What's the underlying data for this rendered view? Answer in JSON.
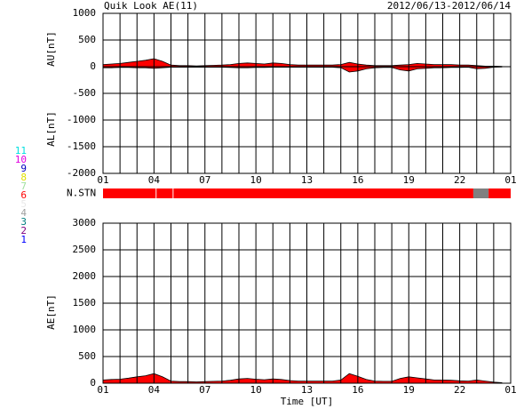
{
  "chart_data": [
    {
      "type": "area",
      "title": "Quik Look AE(11)",
      "subtitle": "2012/06/13-2012/06/14",
      "ylabels": [
        "AU[nT]",
        "AL[nT]"
      ],
      "xlim": [
        0,
        24
      ],
      "xticks": [
        {
          "value": 0,
          "label": "01"
        },
        {
          "value": 3,
          "label": "04"
        },
        {
          "value": 6,
          "label": "07"
        },
        {
          "value": 9,
          "label": "10"
        },
        {
          "value": 12,
          "label": "13"
        },
        {
          "value": 15,
          "label": "16"
        },
        {
          "value": 18,
          "label": "19"
        },
        {
          "value": 21,
          "label": "22"
        },
        {
          "value": 24,
          "label": "01"
        }
      ],
      "x_minor_ticks": [
        1,
        2,
        4,
        5,
        7,
        8,
        10,
        11,
        13,
        14,
        16,
        17,
        19,
        20,
        22,
        23
      ],
      "ylim": [
        -2000,
        1000
      ],
      "yticks": [
        -2000,
        -1500,
        -1000,
        -500,
        0,
        500,
        1000
      ],
      "grid": true,
      "x": [
        0,
        0.5,
        1,
        1.5,
        2,
        2.5,
        3,
        3.5,
        4,
        4.5,
        5,
        5.5,
        6,
        6.5,
        7,
        7.5,
        8,
        8.5,
        9,
        9.5,
        10,
        10.5,
        11,
        11.5,
        12,
        12.5,
        13,
        13.5,
        14,
        14.5,
        15,
        15.5,
        16,
        16.5,
        17,
        17.5,
        18,
        18.5,
        19,
        19.5,
        20,
        20.5,
        21,
        21.5,
        22,
        22.5,
        23,
        23.5
      ],
      "series": [
        {
          "name": "AU",
          "color": "#ff0000",
          "values": [
            40,
            50,
            60,
            80,
            100,
            120,
            150,
            100,
            30,
            20,
            20,
            15,
            20,
            25,
            30,
            40,
            60,
            70,
            60,
            50,
            70,
            60,
            40,
            30,
            30,
            30,
            30,
            30,
            40,
            80,
            50,
            30,
            20,
            20,
            20,
            30,
            40,
            60,
            50,
            40,
            40,
            40,
            30,
            30,
            20,
            10,
            10,
            5
          ]
        },
        {
          "name": "AL",
          "color": "#ff0000",
          "values": [
            -20,
            -20,
            -15,
            -15,
            -20,
            -20,
            -30,
            -20,
            -10,
            -10,
            -10,
            -10,
            -10,
            -10,
            -10,
            -15,
            -20,
            -20,
            -15,
            -15,
            -10,
            -10,
            -10,
            -10,
            -10,
            -10,
            -10,
            -10,
            -20,
            -100,
            -80,
            -40,
            -20,
            -15,
            -15,
            -60,
            -80,
            -40,
            -30,
            -20,
            -20,
            -15,
            -15,
            -10,
            -40,
            -30,
            -10,
            -5
          ]
        }
      ]
    },
    {
      "type": "status",
      "label": "N.STN",
      "xlim": [
        0,
        24
      ],
      "segments": [
        {
          "x": [
            0,
            3.1
          ],
          "color": "#ff0000"
        },
        {
          "x": [
            3.15,
            4.1
          ],
          "color": "#ff0000"
        },
        {
          "x": [
            4.15,
            21.8
          ],
          "color": "#ff0000"
        },
        {
          "x": [
            21.8,
            22.7
          ],
          "color": "#808080"
        },
        {
          "x": [
            22.7,
            24
          ],
          "color": "#ff0000"
        }
      ],
      "stations": [
        {
          "label": "11",
          "color": "#00e0e0"
        },
        {
          "label": "10",
          "color": "#e000e0"
        },
        {
          "label": "9",
          "color": "#0000c0"
        },
        {
          "label": "8",
          "color": "#e0e000"
        },
        {
          "label": "7",
          "color": "#a0e0a0"
        },
        {
          "label": "6",
          "color": "#ff0000"
        },
        {
          "label": "5",
          "color": "#e8e8e8"
        },
        {
          "label": "4",
          "color": "#a0a0a0"
        },
        {
          "label": "3",
          "color": "#008080"
        },
        {
          "label": "2",
          "color": "#800080"
        },
        {
          "label": "1",
          "color": "#0000ff"
        }
      ]
    },
    {
      "type": "area",
      "ylabel": "AE[nT]",
      "xlabel": "Time [UT]",
      "xlim": [
        0,
        24
      ],
      "xticks": [
        {
          "value": 0,
          "label": "01"
        },
        {
          "value": 3,
          "label": "04"
        },
        {
          "value": 6,
          "label": "07"
        },
        {
          "value": 9,
          "label": "10"
        },
        {
          "value": 12,
          "label": "13"
        },
        {
          "value": 15,
          "label": "16"
        },
        {
          "value": 18,
          "label": "19"
        },
        {
          "value": 21,
          "label": "22"
        },
        {
          "value": 24,
          "label": "01"
        }
      ],
      "x_minor_ticks": [
        1,
        2,
        4,
        5,
        7,
        8,
        10,
        11,
        13,
        14,
        16,
        17,
        19,
        20,
        22,
        23
      ],
      "ylim": [
        0,
        3000
      ],
      "yticks": [
        0,
        500,
        1000,
        1500,
        2000,
        2500,
        3000
      ],
      "grid": true,
      "x": [
        0,
        0.5,
        1,
        1.5,
        2,
        2.5,
        3,
        3.5,
        4,
        4.5,
        5,
        5.5,
        6,
        6.5,
        7,
        7.5,
        8,
        8.5,
        9,
        9.5,
        10,
        10.5,
        11,
        11.5,
        12,
        12.5,
        13,
        13.5,
        14,
        14.5,
        15,
        15.5,
        16,
        16.5,
        17,
        17.5,
        18,
        18.5,
        19,
        19.5,
        20,
        20.5,
        21,
        21.5,
        22,
        22.5,
        23,
        23.5
      ],
      "series": [
        {
          "name": "AE",
          "color": "#ff0000",
          "values": [
            60,
            70,
            75,
            95,
            120,
            140,
            180,
            120,
            40,
            30,
            30,
            25,
            30,
            35,
            40,
            55,
            80,
            90,
            75,
            65,
            80,
            70,
            50,
            40,
            40,
            40,
            40,
            40,
            60,
            180,
            130,
            70,
            40,
            35,
            35,
            90,
            120,
            100,
            80,
            60,
            60,
            55,
            45,
            40,
            60,
            40,
            20,
            10
          ]
        }
      ]
    }
  ]
}
